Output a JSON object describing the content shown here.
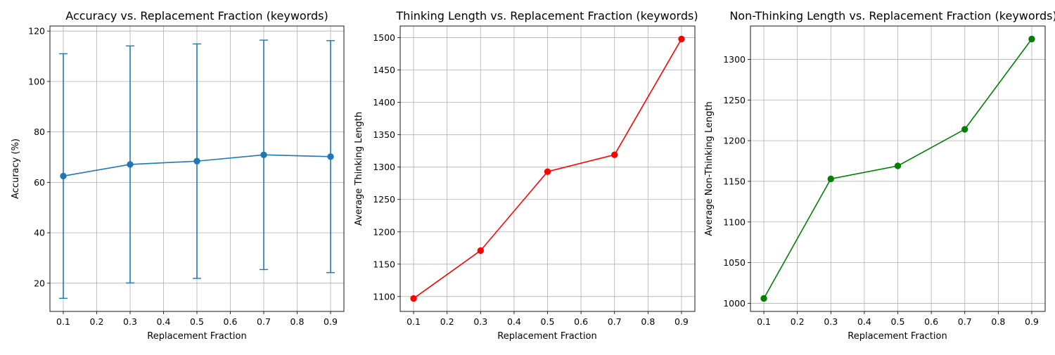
{
  "chart_data": [
    {
      "type": "line",
      "title": "Accuracy vs. Replacement Fraction (keywords)",
      "xlabel": "Replacement Fraction",
      "ylabel": "Accuracy (%)",
      "x": [
        0.1,
        0.3,
        0.5,
        0.7,
        0.9
      ],
      "series": [
        {
          "values": [
            62.5,
            67.1,
            68.4,
            70.9,
            70.2
          ],
          "error": [
            48.5,
            47.0,
            46.5,
            45.5,
            46.0
          ],
          "color": "#1f77b4",
          "marker": "circle"
        }
      ],
      "xlim": [
        0.06,
        0.94
      ],
      "ylim": [
        8.8,
        122.0
      ],
      "xticks": [
        0.1,
        0.2,
        0.3,
        0.4,
        0.5,
        0.6,
        0.7,
        0.8,
        0.9
      ],
      "xtick_labels": [
        "0.1",
        "0.2",
        "0.3",
        "0.4",
        "0.5",
        "0.6",
        "0.7",
        "0.8",
        "0.9"
      ],
      "yticks": [
        20,
        40,
        60,
        80,
        100,
        120
      ],
      "ytick_labels": [
        "20",
        "40",
        "60",
        "80",
        "100",
        "120"
      ],
      "grid": true,
      "legend": false
    },
    {
      "type": "line",
      "title": "Thinking Length vs. Replacement Fraction (keywords)",
      "xlabel": "Replacement Fraction",
      "ylabel": "Average Thinking Length",
      "x": [
        0.1,
        0.3,
        0.5,
        0.7,
        0.9
      ],
      "series": [
        {
          "values": [
            1097,
            1171,
            1293,
            1319,
            1498
          ],
          "color": "#ff0000",
          "marker": "circle"
        }
      ],
      "xlim": [
        0.06,
        0.94
      ],
      "ylim": [
        1077,
        1518
      ],
      "xticks": [
        0.1,
        0.2,
        0.3,
        0.4,
        0.5,
        0.6,
        0.7,
        0.8,
        0.9
      ],
      "xtick_labels": [
        "0.1",
        "0.2",
        "0.3",
        "0.4",
        "0.5",
        "0.6",
        "0.7",
        "0.8",
        "0.9"
      ],
      "yticks": [
        1100,
        1150,
        1200,
        1250,
        1300,
        1350,
        1400,
        1450,
        1500
      ],
      "ytick_labels": [
        "1100",
        "1150",
        "1200",
        "1250",
        "1300",
        "1350",
        "1400",
        "1450",
        "1500"
      ],
      "grid": true,
      "legend": false
    },
    {
      "type": "line",
      "title": "Non-Thinking Length vs. Replacement Fraction (keywords)",
      "xlabel": "Replacement Fraction",
      "ylabel": "Average Non-Thinking Length",
      "x": [
        0.1,
        0.3,
        0.5,
        0.7,
        0.9
      ],
      "series": [
        {
          "values": [
            1006,
            1153,
            1169,
            1214,
            1325
          ],
          "color": "#008000",
          "marker": "circle"
        }
      ],
      "xlim": [
        0.06,
        0.94
      ],
      "ylim": [
        990,
        1341
      ],
      "xticks": [
        0.1,
        0.2,
        0.3,
        0.4,
        0.5,
        0.6,
        0.7,
        0.8,
        0.9
      ],
      "xtick_labels": [
        "0.1",
        "0.2",
        "0.3",
        "0.4",
        "0.5",
        "0.6",
        "0.7",
        "0.8",
        "0.9"
      ],
      "yticks": [
        1000,
        1050,
        1100,
        1150,
        1200,
        1250,
        1300
      ],
      "ytick_labels": [
        "1000",
        "1050",
        "1100",
        "1150",
        "1200",
        "1250",
        "1300"
      ],
      "grid": true,
      "legend": false
    }
  ]
}
